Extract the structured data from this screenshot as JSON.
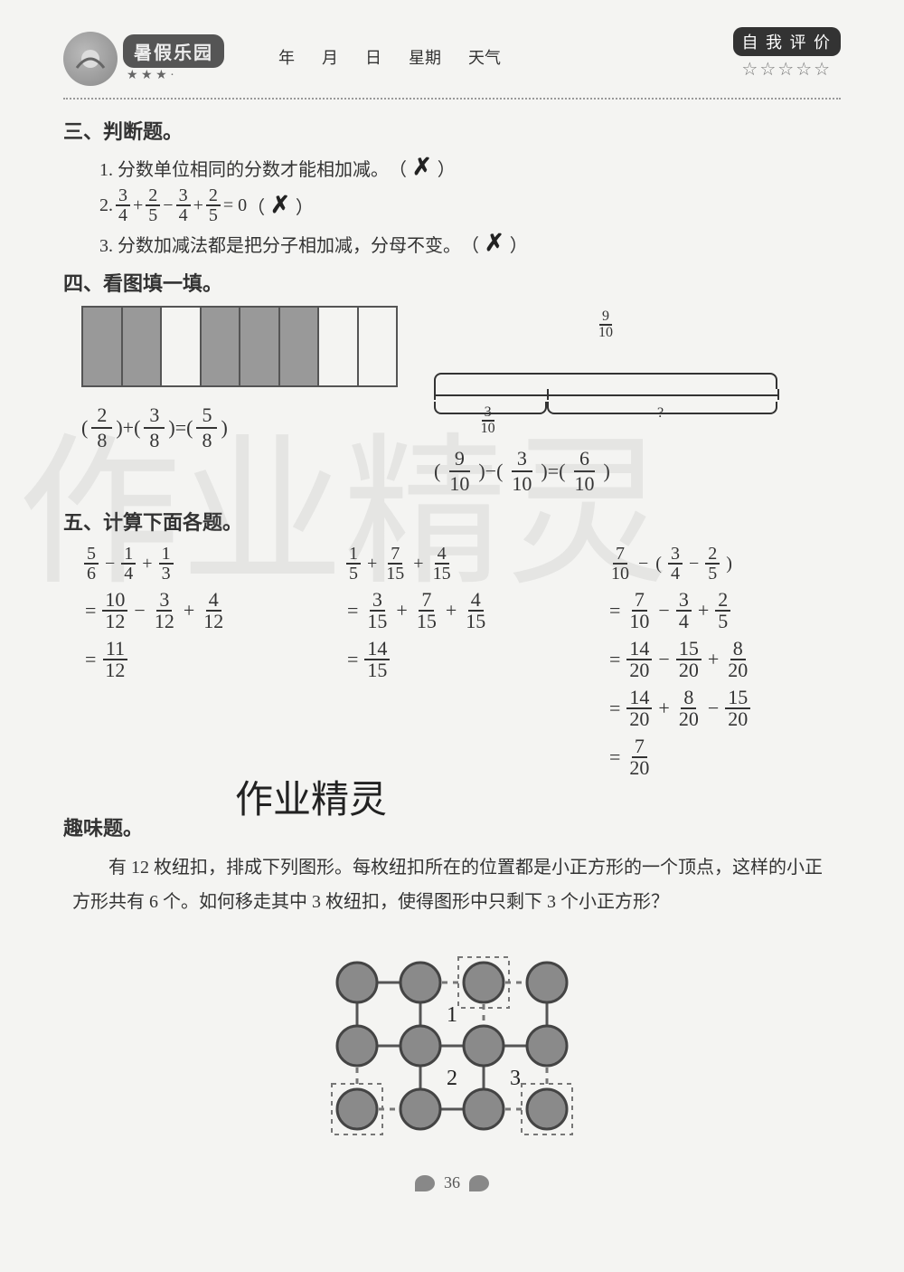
{
  "header": {
    "logo_title": "暑假乐园",
    "small_stars": "★ ★ ★ ·",
    "date_labels": {
      "year": "年",
      "month": "月",
      "day": "日",
      "weekday": "星期",
      "weather": "天气"
    },
    "self_eval_label": "自 我 评 价",
    "self_eval_stars": "☆☆☆☆☆"
  },
  "section3": {
    "title": "三、判断题。",
    "q1_text": "1. 分数单位相同的分数才能相加减。",
    "q1_mark": "✗",
    "q2_prefix": "2. ",
    "q2_frac_a": {
      "n": "3",
      "d": "4"
    },
    "q2_frac_b": {
      "n": "2",
      "d": "5"
    },
    "q2_frac_c": {
      "n": "3",
      "d": "4"
    },
    "q2_frac_d": {
      "n": "2",
      "d": "5"
    },
    "q2_tail": " = 0",
    "q2_mark": "✗",
    "q3_text": "3. 分数加减法都是把分子相加减，分母不变。",
    "q3_mark": "✗"
  },
  "section4": {
    "title": "四、看图填一填。",
    "bar": {
      "shaded": [
        true,
        true,
        false,
        true,
        true,
        true,
        false,
        false
      ],
      "eq": {
        "a": {
          "n": "2",
          "d": "8"
        },
        "b": {
          "n": "3",
          "d": "8"
        },
        "c": {
          "n": "5",
          "d": "8"
        },
        "op1": "+",
        "op2": "="
      }
    },
    "line": {
      "top_label": {
        "n": "9",
        "d": "10"
      },
      "left_label": {
        "n": "3",
        "d": "10"
      },
      "right_label": "?",
      "eq": {
        "a": {
          "n": "9",
          "d": "10"
        },
        "b": {
          "n": "3",
          "d": "10"
        },
        "c": {
          "n": "6",
          "d": "10"
        },
        "op1": "−",
        "op2": "="
      }
    }
  },
  "section5": {
    "title": "五、计算下面各题。",
    "col1": {
      "expr": [
        {
          "n": "5",
          "d": "6"
        },
        "−",
        {
          "n": "1",
          "d": "4"
        },
        "+",
        {
          "n": "1",
          "d": "3"
        }
      ],
      "s1": [
        "=",
        {
          "n": "10",
          "d": "12"
        },
        "−",
        {
          "n": "3",
          "d": "12"
        },
        "+",
        {
          "n": "4",
          "d": "12"
        }
      ],
      "s2": [
        "=",
        {
          "n": "11",
          "d": "12"
        }
      ]
    },
    "col2": {
      "expr": [
        {
          "n": "1",
          "d": "5"
        },
        "+",
        {
          "n": "7",
          "d": "15"
        },
        "+",
        {
          "n": "4",
          "d": "15"
        }
      ],
      "s1": [
        "=",
        {
          "n": "3",
          "d": "15"
        },
        "+",
        {
          "n": "7",
          "d": "15"
        },
        "+",
        {
          "n": "4",
          "d": "15"
        }
      ],
      "s2": [
        "=",
        {
          "n": "14",
          "d": "15"
        }
      ]
    },
    "col3": {
      "expr": [
        {
          "n": "7",
          "d": "10"
        },
        "−",
        "(",
        {
          "n": "3",
          "d": "4"
        },
        "−",
        {
          "n": "2",
          "d": "5"
        },
        ")"
      ],
      "s1": [
        "=",
        {
          "n": "7",
          "d": "10"
        },
        "−",
        {
          "n": "3",
          "d": "4"
        },
        "+",
        {
          "n": "2",
          "d": "5"
        }
      ],
      "s2": [
        "=",
        {
          "n": "14",
          "d": "20"
        },
        "−",
        {
          "n": "15",
          "d": "20"
        },
        "+",
        {
          "n": "8",
          "d": "20"
        }
      ],
      "s3": [
        "=",
        {
          "n": "14",
          "d": "20"
        },
        "+",
        {
          "n": "8",
          "d": "20"
        },
        "−",
        {
          "n": "15",
          "d": "20"
        }
      ],
      "s4": [
        "=",
        {
          "n": "7",
          "d": "20"
        }
      ]
    }
  },
  "watermark_text": "作业精灵",
  "mid_watermark": "作业精灵",
  "fun": {
    "title": "趣味题。",
    "body": "有 12 枚纽扣，排成下列图形。每枚纽扣所在的位置都是小正方形的一个顶点，这样的小正方形共有 6 个。如何移走其中 3 枚纽扣，使得图形中只剩下 3 个小正方形？",
    "grid": {
      "rows": 3,
      "cols": 4,
      "cell": 70,
      "r": 22,
      "button_color": "#8a8a8a",
      "button_stroke": "#444",
      "line_color": "#555",
      "dashed_color": "#777",
      "removed": [
        [
          0,
          2
        ],
        [
          2,
          0
        ],
        [
          2,
          3
        ]
      ],
      "labels": {
        "1": [
          0.5,
          1.5
        ],
        "2": [
          1.5,
          1.5
        ],
        "3": [
          1.5,
          2.5
        ]
      }
    }
  },
  "page_number": "36",
  "colors": {
    "bg": "#f4f4f2",
    "text": "#333333",
    "shade": "#999999",
    "line": "#555555"
  }
}
